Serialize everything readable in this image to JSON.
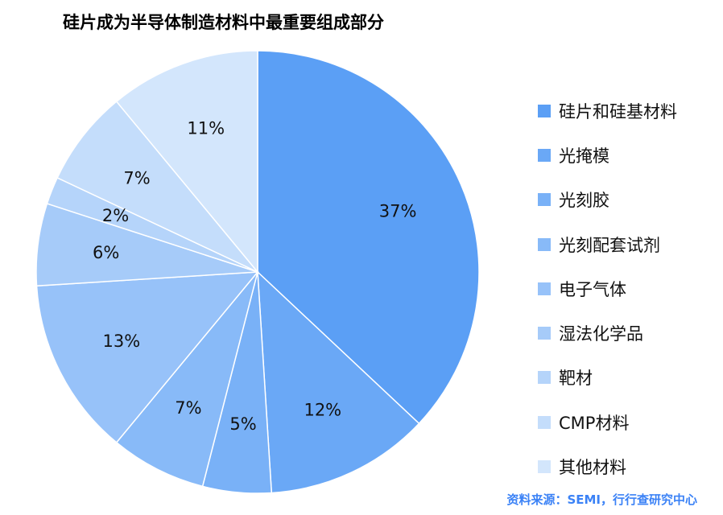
{
  "chart_data": {
    "type": "pie",
    "title": "硅片成为半导体制造材料中最重要组成部分",
    "categories": [
      "硅片和硅基材料",
      "光掩模",
      "光刻胶",
      "光刻配套试剂",
      "电子气体",
      "湿法化学品",
      "靶材",
      "CMP材料",
      "其他材料"
    ],
    "series": [
      {
        "name": "硅片成为半导体制造材料中最重要组成部分",
        "values": [
          37,
          12,
          5,
          7,
          13,
          6,
          2,
          7,
          11
        ]
      }
    ],
    "value_labels": [
      "37%",
      "12%",
      "5%",
      "7%",
      "13%",
      "6%",
      "2%",
      "7%",
      "11%"
    ],
    "colors": [
      "#5b9ff5",
      "#6aa8f6",
      "#79b1f7",
      "#88baf8",
      "#97c2f9",
      "#a6cbf9",
      "#b5d4fa",
      "#c4ddfb",
      "#d3e6fc"
    ],
    "start_angle": "12 o'clock",
    "direction": "clockwise",
    "legend_position": "right"
  },
  "source_text": "资料来源：SEMI，行行查研究中心",
  "source_color": "#3b82f6"
}
